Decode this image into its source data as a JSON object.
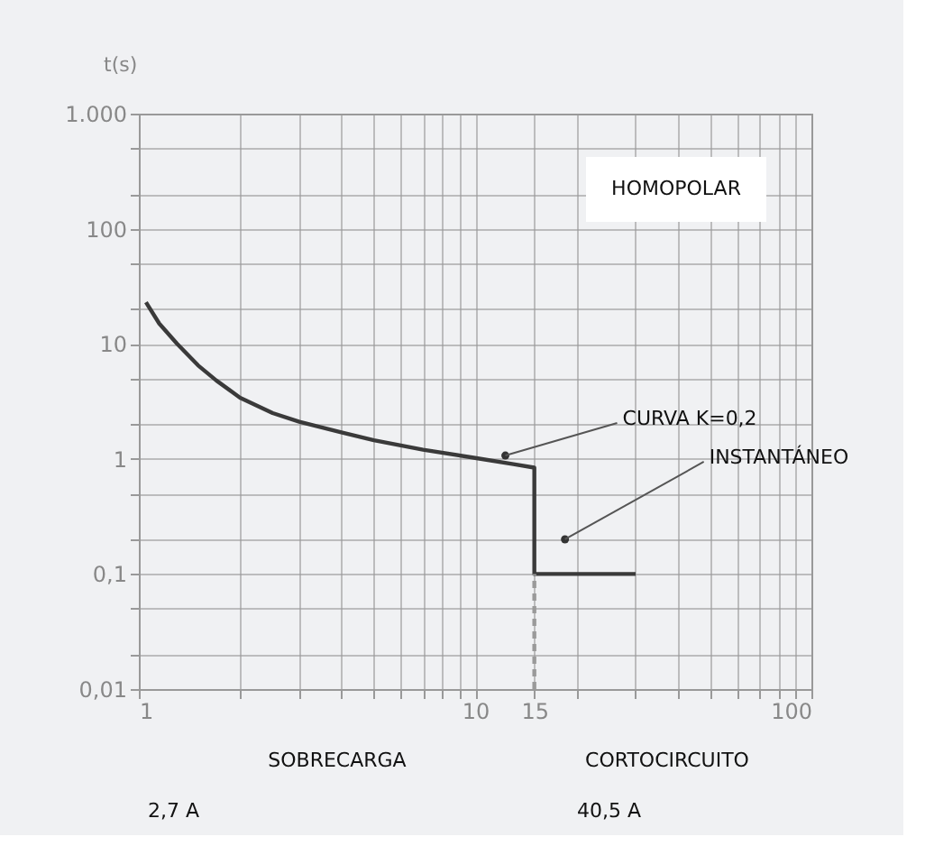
{
  "chart_data": {
    "type": "line",
    "ylabel": "t(s)",
    "series": [
      {
        "color": "#3a3a3a",
        "x": [
          1.05,
          1.15,
          1.3,
          1.5,
          1.7,
          2,
          2.5,
          3,
          4,
          5,
          7,
          10,
          13,
          15,
          15,
          30
        ],
        "values": [
          23,
          15,
          10,
          6.5,
          4.8,
          3.4,
          2.5,
          2.1,
          1.7,
          1.45,
          1.2,
          1.02,
          0.9,
          0.84,
          0.1,
          0.1
        ]
      },
      {
        "color": "#9a9a9a",
        "line_style": "dashed",
        "x": [
          15,
          15
        ],
        "values": [
          0.01,
          0.1
        ]
      }
    ],
    "log": "xy",
    "xlim": [
      1,
      100
    ],
    "ylim": [
      0.01,
      1000
    ],
    "xticks": [
      1,
      {
        "value": 2,
        "label": null
      },
      {
        "value": 3,
        "label": null
      },
      {
        "value": 4,
        "label": null
      },
      {
        "value": 5,
        "label": null
      },
      {
        "value": 6,
        "label": null
      },
      {
        "value": 7,
        "label": null
      },
      {
        "value": 8,
        "label": null
      },
      {
        "value": 9,
        "label": null
      },
      10,
      15,
      {
        "value": 20,
        "label": null
      },
      {
        "value": 30,
        "label": null
      },
      {
        "value": 40,
        "label": null
      },
      {
        "value": 50,
        "label": null
      },
      {
        "value": 60,
        "label": null
      },
      {
        "value": 70,
        "label": null
      },
      {
        "value": 80,
        "label": null
      },
      {
        "value": 90,
        "label": null
      },
      100
    ],
    "yticks": [
      {
        "value": 0.01,
        "label": "0,01"
      },
      {
        "value": 0.02,
        "label": null
      },
      {
        "value": 0.05,
        "label": null
      },
      {
        "value": 0.1,
        "label": "0,1"
      },
      {
        "value": 0.2,
        "label": null
      },
      {
        "value": 0.5,
        "label": null
      },
      1,
      {
        "value": 2,
        "label": null
      },
      {
        "value": 5,
        "label": null
      },
      10,
      {
        "value": 20,
        "label": null
      },
      {
        "value": 50,
        "label": null
      },
      100,
      {
        "value": 200,
        "label": null
      },
      {
        "value": 500,
        "label": null
      },
      {
        "value": 1000,
        "label": "1.000"
      }
    ],
    "grid": true,
    "annotations": [
      "HOMOPOLAR",
      {
        "text": "CURVA K=0,2",
        "x": 12.3,
        "y": 1.07
      },
      {
        "text": "INSTANTÁNEO",
        "x": 18.5,
        "y": 0.2
      },
      "SOBRECARGA",
      "CORTOCIRCUITO",
      "2,7 A",
      "40,5 A"
    ]
  }
}
